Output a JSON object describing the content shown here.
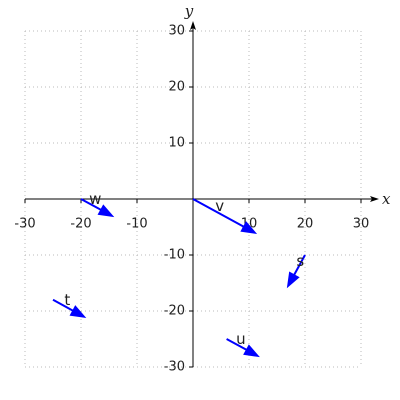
{
  "chart_data": {
    "type": "quiver",
    "x_label": "x",
    "y_label": "y",
    "xlim": [
      -30,
      30
    ],
    "ylim": [
      -30,
      30
    ],
    "xticks": [
      -30,
      -20,
      -10,
      10,
      20,
      30
    ],
    "yticks": [
      -30,
      -20,
      -10,
      10,
      20,
      30
    ],
    "grid": true,
    "color": "#0000ff",
    "label_color": "#e00000",
    "vectors": [
      {
        "name": "v",
        "x0": 0,
        "y0": 0,
        "dx": 11,
        "dy": -6
      },
      {
        "name": "w",
        "x0": -20,
        "y0": 0,
        "dx": 5.5,
        "dy": -3
      },
      {
        "name": "t",
        "x0": -25,
        "y0": -18,
        "dx": 5.5,
        "dy": -3
      },
      {
        "name": "u",
        "x0": 6,
        "y0": -25,
        "dx": 5.5,
        "dy": -3
      },
      {
        "name": "s",
        "x0": 20,
        "y0": -10,
        "dx": -3,
        "dy": -5.5
      }
    ]
  }
}
